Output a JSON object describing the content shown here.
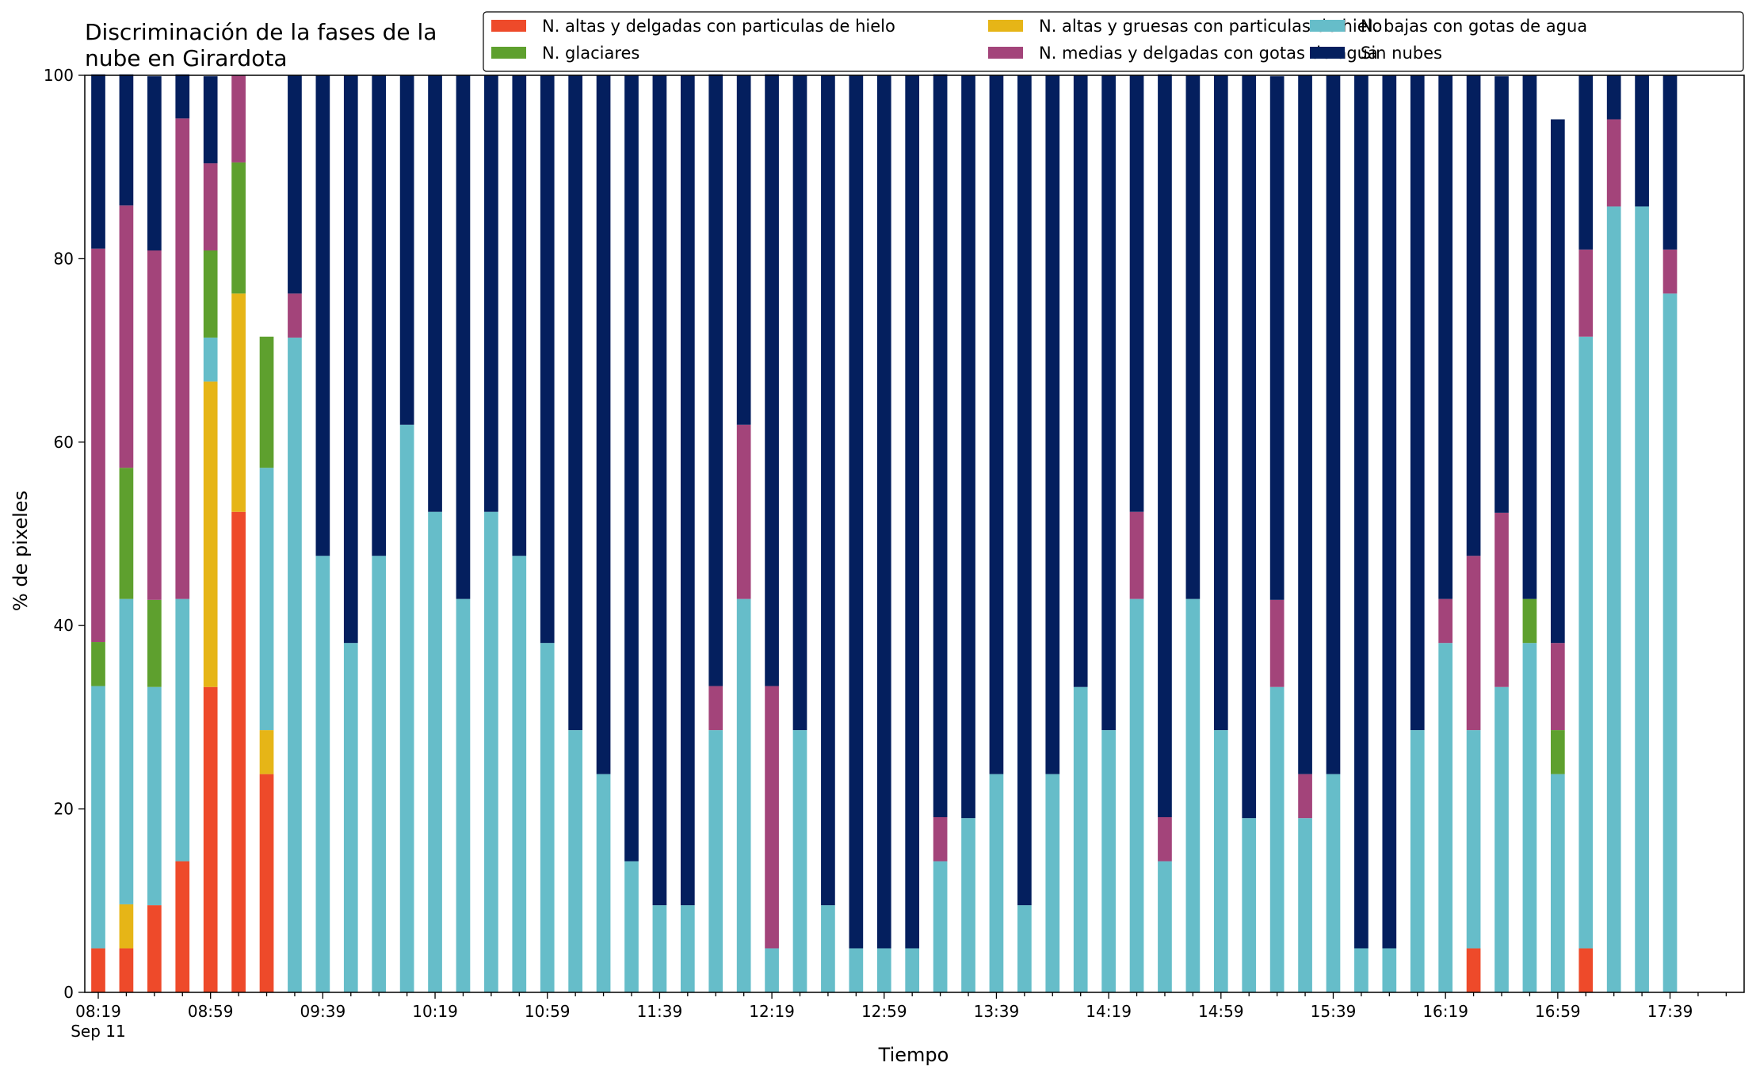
{
  "chart_data": {
    "type": "bar",
    "stacked": true,
    "title_lines": [
      "Discriminación de la fases de la",
      "nube en Girardota"
    ],
    "xlabel": "Tiempo",
    "ylabel": "% de pixeles",
    "ylim": [
      0,
      100
    ],
    "yticks": [
      0,
      20,
      40,
      60,
      80,
      100
    ],
    "grid": false,
    "legend_position": "top-right",
    "legend_columns": 3,
    "date_label": "Sep 11",
    "categories": [
      "08:19",
      "08:29",
      "08:39",
      "08:49",
      "08:59",
      "09:09",
      "09:19",
      "09:29",
      "09:39",
      "09:49",
      "09:59",
      "10:09",
      "10:19",
      "10:29",
      "10:39",
      "10:49",
      "10:59",
      "11:09",
      "11:19",
      "11:29",
      "11:39",
      "11:49",
      "11:59",
      "12:09",
      "12:19",
      "12:29",
      "12:39",
      "12:49",
      "12:59",
      "13:09",
      "13:19",
      "13:29",
      "13:39",
      "13:49",
      "13:59",
      "14:09",
      "14:19",
      "14:29",
      "14:39",
      "14:49",
      "14:59",
      "15:09",
      "15:19",
      "15:29",
      "15:39",
      "15:49",
      "15:59",
      "16:09",
      "16:19",
      "16:29",
      "16:39",
      "16:49",
      "16:59",
      "17:09",
      "17:19",
      "17:29",
      "17:39"
    ],
    "x_extra_minor_ticks": [
      "17:49",
      "17:59"
    ],
    "xtick_labels": [
      "08:19",
      "08:59",
      "09:39",
      "10:19",
      "10:59",
      "11:39",
      "12:19",
      "12:59",
      "13:39",
      "14:19",
      "14:59",
      "15:39",
      "16:19",
      "16:59",
      "17:39"
    ],
    "series": [
      {
        "name": "N. altas y delgadas con particulas de hielo",
        "color": "#EE4A2A",
        "values": [
          4.8,
          4.8,
          9.5,
          14.3,
          33.3,
          52.4,
          23.8,
          0,
          0,
          0,
          0,
          0,
          0,
          0,
          0,
          0,
          0,
          0,
          0,
          0,
          0,
          0,
          0,
          0,
          0,
          0,
          0,
          0,
          0,
          0,
          0,
          0,
          0,
          0,
          0,
          0,
          0,
          0,
          0,
          0,
          0,
          0,
          0,
          0,
          0,
          0,
          0,
          0,
          0,
          4.8,
          0,
          0,
          0,
          4.8,
          0,
          0,
          0
        ]
      },
      {
        "name": "N. altas y gruesas con particulas de hielo",
        "color": "#E6B517",
        "values": [
          0,
          4.8,
          0,
          0,
          33.3,
          23.8,
          4.8,
          0,
          0,
          0,
          0,
          0,
          0,
          0,
          0,
          0,
          0,
          0,
          0,
          0,
          0,
          0,
          0,
          0,
          0,
          0,
          0,
          0,
          0,
          0,
          0,
          0,
          0,
          0,
          0,
          0,
          0,
          0,
          0,
          0,
          0,
          0,
          0,
          0,
          0,
          0,
          0,
          0,
          0,
          0,
          0,
          0,
          0,
          0,
          0,
          0,
          0
        ]
      },
      {
        "name": "N. bajas con gotas de agua",
        "color": "#66BDC9",
        "values": [
          28.6,
          33.3,
          23.8,
          28.6,
          4.8,
          0,
          28.6,
          71.4,
          47.6,
          38.1,
          47.6,
          61.9,
          52.4,
          42.9,
          52.4,
          47.6,
          38.1,
          28.6,
          23.8,
          14.3,
          9.5,
          9.5,
          28.6,
          42.9,
          4.8,
          28.6,
          9.5,
          4.8,
          4.8,
          4.8,
          14.3,
          19.0,
          23.8,
          9.5,
          23.8,
          33.3,
          28.6,
          42.9,
          14.3,
          42.9,
          28.6,
          19.0,
          33.3,
          19.0,
          23.8,
          4.8,
          4.8,
          28.6,
          38.1,
          23.8,
          33.3,
          38.1,
          23.8,
          66.7,
          85.7,
          85.7,
          76.2
        ]
      },
      {
        "name": "N. glaciares",
        "color": "#5EA02E",
        "values": [
          4.8,
          14.3,
          9.5,
          0,
          9.5,
          14.3,
          14.3,
          0,
          0,
          0,
          0,
          0,
          0,
          0,
          0,
          0,
          0,
          0,
          0,
          0,
          0,
          0,
          0,
          0,
          0,
          0,
          0,
          0,
          0,
          0,
          0,
          0,
          0,
          0,
          0,
          0,
          0,
          0,
          0,
          0,
          0,
          0,
          0,
          0,
          0,
          0,
          0,
          0,
          0,
          0,
          0,
          4.8,
          4.8,
          0,
          0,
          0,
          0
        ]
      },
      {
        "name": "N. medias y delgadas con gotas de agua",
        "color": "#A3447A",
        "values": [
          42.9,
          28.6,
          38.1,
          52.4,
          9.5,
          9.5,
          0,
          4.8,
          0,
          0,
          0,
          0,
          0,
          0,
          0,
          0,
          0,
          0,
          0,
          0,
          0,
          0,
          4.8,
          19.0,
          28.6,
          0,
          0,
          0,
          0,
          0,
          4.8,
          0,
          0,
          0,
          0,
          0,
          0,
          9.5,
          4.8,
          0,
          0,
          0,
          9.5,
          4.8,
          0,
          0,
          0,
          0,
          4.8,
          19.0,
          19.0,
          0,
          9.5,
          9.5,
          9.5,
          0,
          4.8
        ]
      },
      {
        "name": "Sin nubes",
        "color": "#041F5E",
        "values": [
          19.0,
          14.3,
          19.0,
          4.8,
          9.5,
          0,
          0,
          23.8,
          52.4,
          61.9,
          52.4,
          38.1,
          47.6,
          57.1,
          47.6,
          52.4,
          61.9,
          71.4,
          76.2,
          85.7,
          90.5,
          90.5,
          66.7,
          38.1,
          66.7,
          71.4,
          90.5,
          95.2,
          95.2,
          95.2,
          81.0,
          81.0,
          76.2,
          90.5,
          76.2,
          66.7,
          71.4,
          47.6,
          81.0,
          57.1,
          71.4,
          81.0,
          57.1,
          76.2,
          76.2,
          95.2,
          95.2,
          71.4,
          57.1,
          52.4,
          47.6,
          57.1,
          57.1,
          19.0,
          4.8,
          14.3,
          19.0
        ]
      }
    ]
  }
}
